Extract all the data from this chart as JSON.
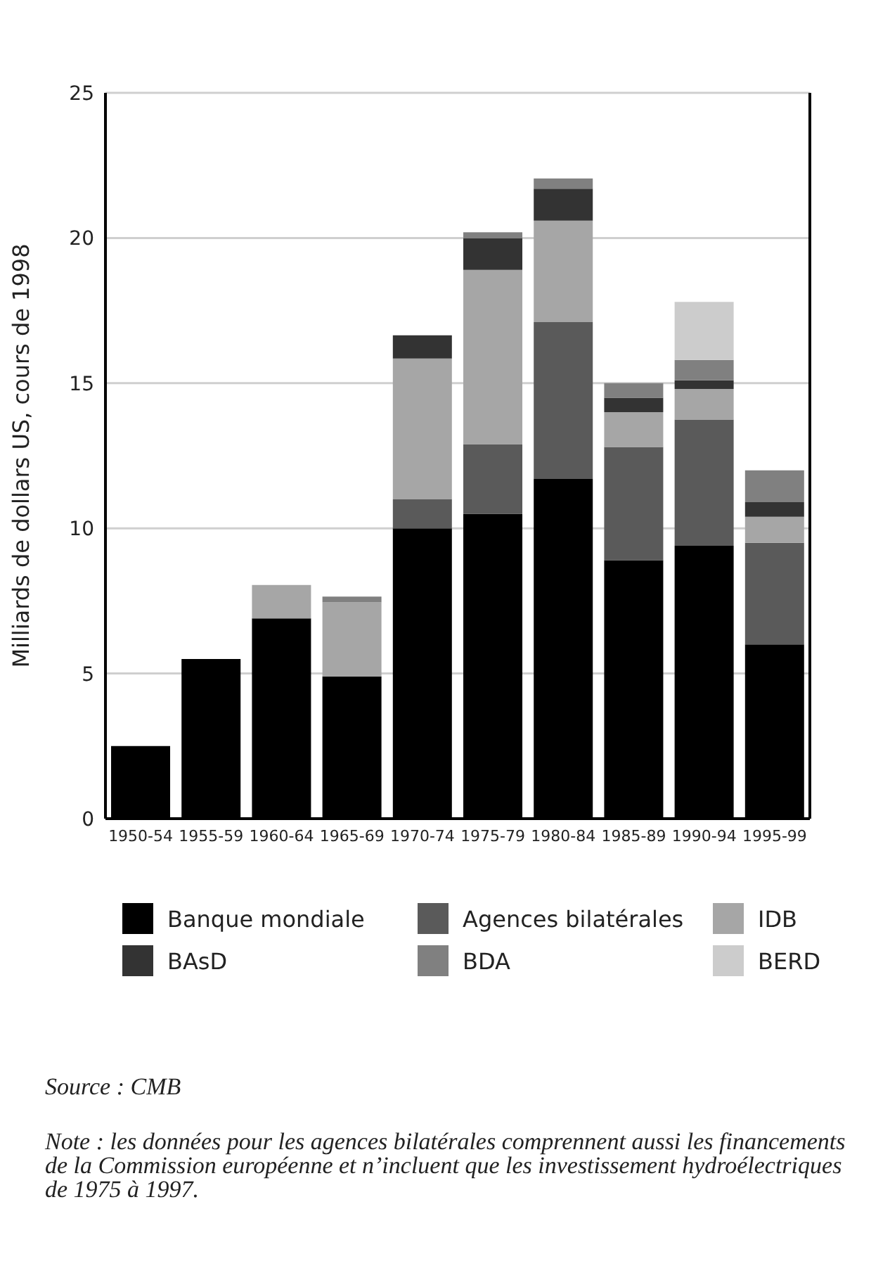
{
  "chart_data": {
    "type": "bar",
    "stacked": true,
    "ylabel": "Milliards de dollars US, cours de 1998",
    "categories": [
      "1950-54",
      "1955-59",
      "1960-64",
      "1965-69",
      "1970-74",
      "1975-79",
      "1980-84",
      "1985-89",
      "1990-94",
      "1995-99"
    ],
    "series": [
      {
        "name": "Banque mondiale",
        "color": "#000000",
        "values": [
          2.5,
          5.5,
          6.9,
          4.9,
          10.0,
          10.5,
          11.7,
          8.9,
          9.4,
          6.0
        ]
      },
      {
        "name": "Agences bilatérales",
        "color": "#5a5a5a",
        "values": [
          null,
          null,
          null,
          null,
          1.0,
          2.4,
          5.4,
          3.9,
          4.35,
          3.5
        ]
      },
      {
        "name": "IDB",
        "color": "#a6a6a6",
        "values": [
          null,
          null,
          1.15,
          2.55,
          4.85,
          6.0,
          3.5,
          1.2,
          1.05,
          0.9
        ]
      },
      {
        "name": "BAsD",
        "color": "#333333",
        "values": [
          null,
          null,
          null,
          null,
          0.8,
          1.1,
          1.1,
          0.5,
          0.3,
          0.5
        ]
      },
      {
        "name": "BDA",
        "color": "#808080",
        "values": [
          null,
          null,
          null,
          0.2,
          null,
          0.2,
          0.35,
          0.5,
          0.7,
          1.1
        ]
      },
      {
        "name": "BERD",
        "color": "#cccccc",
        "values": [
          null,
          null,
          null,
          null,
          null,
          null,
          null,
          null,
          2.0,
          null
        ]
      }
    ],
    "ylim": [
      0,
      25
    ],
    "yticks": [
      0,
      5,
      10,
      15,
      20,
      25
    ],
    "grid": "y",
    "legend": "bottom",
    "annotations": [
      "Source : CMB",
      "Note : les données pour les agences bilatérales comprennent aussi les financements de la Commission européenne et n’incluent que les investissement hydroélectriques de 1975 à 1997."
    ]
  }
}
